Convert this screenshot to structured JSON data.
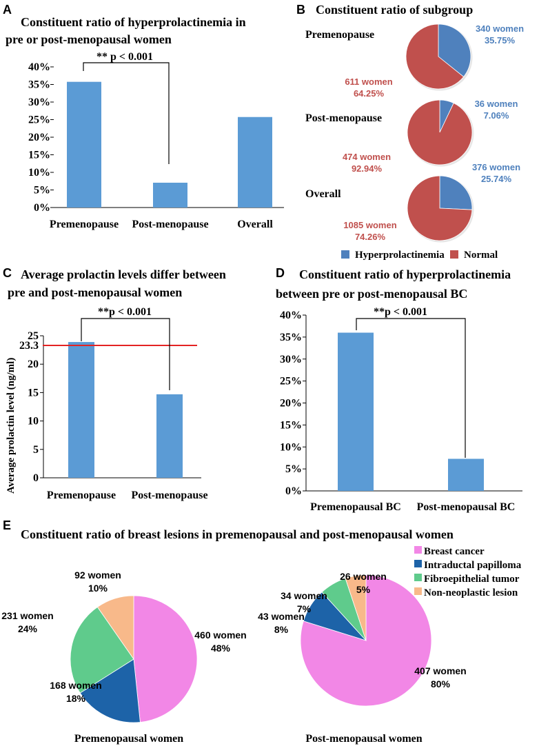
{
  "colors": {
    "bar": "#5b9bd5",
    "hyper": "#4f81bd",
    "normal": "#c0504d",
    "hyper_text": "#4f81bd",
    "normal_text": "#c0504d",
    "threshold": "#e32222",
    "breast_cancer": "#f287e6",
    "intraductal": "#1d63a8",
    "fibro": "#5fcb8c",
    "nonneo": "#f8b98a"
  },
  "chart_data": [
    {
      "panel": "A",
      "type": "bar",
      "title_line1": "Constituent ratio of hyperprolactinemia in",
      "title_line2": "pre or post-menopausal women",
      "categories": [
        "Premenopause",
        "Post-menopause",
        "Overall"
      ],
      "values": [
        35.75,
        7.06,
        25.74
      ],
      "ylim": [
        0,
        40
      ],
      "yticks": [
        "0%",
        "5%",
        "10%",
        "15%",
        "20%",
        "25%",
        "30%",
        "35%",
        "40%"
      ],
      "annotation": "** p < 0.001",
      "xlabel": "",
      "ylabel": ""
    },
    {
      "panel": "B",
      "type": "pie",
      "title": "Constituent ratio of  subgroup",
      "groups": [
        {
          "name": "Premenopause",
          "hyper_count": "340 women",
          "hyper_pct": "35.75%",
          "normal_count": "611 women",
          "normal_pct": "64.25%",
          "hyper_value": 35.75
        },
        {
          "name": "Post-menopause",
          "hyper_count": "36 women",
          "hyper_pct": "7.06%",
          "normal_count": "474 women",
          "normal_pct": "92.94%",
          "hyper_value": 7.06
        },
        {
          "name": "Overall",
          "hyper_count": "376 women",
          "hyper_pct": "25.74%",
          "normal_count": "1085 women",
          "normal_pct": "74.26%",
          "hyper_value": 25.74
        }
      ],
      "legend": [
        "Hyperprolactinemia",
        "Normal"
      ]
    },
    {
      "panel": "C",
      "type": "bar",
      "title_line1": "Average prolactin levels differ between",
      "title_line2": "pre and post-menopausal women",
      "categories": [
        "Premenopause",
        "Post-menopause"
      ],
      "values": [
        23.9,
        14.7
      ],
      "ylim": [
        0,
        25
      ],
      "yticks": [
        "0",
        "5",
        "10",
        "15",
        "20",
        "25"
      ],
      "threshold": 23.3,
      "threshold_label": "23.3",
      "ylabel": "Average prolactin level   (ng/ml)",
      "annotation": "**p < 0.001"
    },
    {
      "panel": "D",
      "type": "bar",
      "title_line1": "Constituent ratio of hyperprolactinemia",
      "title_line2": "between pre or post-menopausal BC",
      "categories": [
        "Premenopausal BC",
        "Post-menopausal BC"
      ],
      "values": [
        36.0,
        7.3
      ],
      "ylim": [
        0,
        40
      ],
      "yticks": [
        "0%",
        "5%",
        "10%",
        "15%",
        "20%",
        "25%",
        "30%",
        "35%",
        "40%"
      ],
      "annotation": "**p < 0.001"
    },
    {
      "panel": "E",
      "type": "pie",
      "title": "Constituent ratio of breast lesions in premenopausal and post-menopausal women",
      "legend": [
        "Breast cancer",
        "Intraductal papilloma",
        "Fibroepithelial tumor",
        "Non-neoplastic lesion"
      ],
      "pies": [
        {
          "name": "Premenopausal women",
          "values": [
            460,
            168,
            231,
            92
          ],
          "labels": [
            [
              "460 women",
              "48%"
            ],
            [
              "168 women",
              "18%"
            ],
            [
              "231 women",
              "24%"
            ],
            [
              "92 women",
              "10%"
            ]
          ]
        },
        {
          "name": "Post-menopausal women",
          "values": [
            407,
            43,
            34,
            26
          ],
          "labels": [
            [
              "407 women",
              "80%"
            ],
            [
              "43 women",
              "8%"
            ],
            [
              "34 women",
              "7%"
            ],
            [
              "26 women",
              "5%"
            ]
          ]
        }
      ]
    }
  ],
  "panel_letters": [
    "A",
    "B",
    "C",
    "D",
    "E"
  ]
}
